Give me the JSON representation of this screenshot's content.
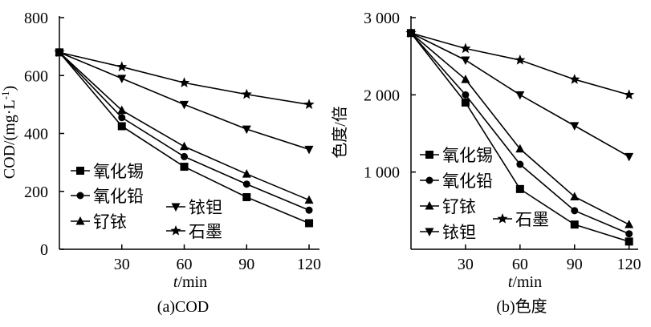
{
  "chart_data": [
    {
      "type": "line",
      "title": "(a)COD",
      "xlabel_var": "t",
      "xlabel_unit": "/min",
      "ylabel_main": "COD/(mg·L",
      "ylabel_sup": "-1",
      "ylabel_close": ")",
      "xlim": [
        0,
        125
      ],
      "ylim": [
        0,
        800
      ],
      "xticks": [
        30,
        60,
        90,
        120
      ],
      "xtick_labels": [
        "30",
        "60",
        "90",
        "120"
      ],
      "yticks": [
        0,
        200,
        400,
        600,
        800
      ],
      "ytick_labels": [
        "0",
        "200",
        "400",
        "600",
        "800"
      ],
      "x": [
        0,
        30,
        60,
        90,
        120
      ],
      "series": [
        {
          "name": "氧化锡",
          "marker": "square",
          "values": [
            680,
            425,
            285,
            180,
            90
          ]
        },
        {
          "name": "氧化铅",
          "marker": "circle",
          "values": [
            680,
            455,
            320,
            225,
            135
          ]
        },
        {
          "name": "钌铱",
          "marker": "triangle-up",
          "values": [
            680,
            480,
            355,
            260,
            170
          ]
        },
        {
          "name": "铱钽",
          "marker": "triangle-down",
          "values": [
            680,
            590,
            500,
            415,
            345
          ]
        },
        {
          "name": "石墨",
          "marker": "star",
          "values": [
            680,
            630,
            575,
            535,
            500
          ]
        }
      ]
    },
    {
      "type": "line",
      "title": "(b)色度",
      "xlabel_var": "t",
      "xlabel_unit": "/min",
      "ylabel_main": "色度/倍",
      "ylabel_sup": "",
      "ylabel_close": "",
      "xlim": [
        0,
        125
      ],
      "ylim": [
        0,
        3000
      ],
      "xticks": [
        30,
        60,
        90,
        120
      ],
      "xtick_labels": [
        "30",
        "60",
        "90",
        "120"
      ],
      "yticks": [
        1000,
        2000,
        3000
      ],
      "ytick_labels": [
        "1 000",
        "2 000",
        "3 000"
      ],
      "x": [
        0,
        30,
        60,
        90,
        120
      ],
      "series": [
        {
          "name": "氧化锡",
          "marker": "square",
          "values": [
            2800,
            1900,
            780,
            320,
            100
          ]
        },
        {
          "name": "氧化铅",
          "marker": "circle",
          "values": [
            2800,
            2000,
            1100,
            500,
            200
          ]
        },
        {
          "name": "钌铱",
          "marker": "triangle-up",
          "values": [
            2800,
            2200,
            1300,
            680,
            320
          ]
        },
        {
          "name": "铱钽",
          "marker": "triangle-down",
          "values": [
            2800,
            2450,
            2000,
            1600,
            1200
          ]
        },
        {
          "name": "石墨",
          "marker": "star",
          "values": [
            2800,
            2600,
            2450,
            2200,
            2000
          ]
        }
      ]
    }
  ]
}
